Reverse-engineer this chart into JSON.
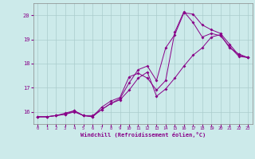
{
  "xlabel": "Windchill (Refroidissement éolien,°C)",
  "bg_color": "#cceaea",
  "grid_color": "#aacccc",
  "line_color": "#880088",
  "xlim": [
    -0.5,
    23.5
  ],
  "ylim": [
    15.5,
    20.5
  ],
  "xticks": [
    0,
    1,
    2,
    3,
    4,
    5,
    6,
    7,
    8,
    9,
    10,
    11,
    12,
    13,
    14,
    15,
    16,
    17,
    18,
    19,
    20,
    21,
    22,
    23
  ],
  "yticks": [
    16,
    17,
    18,
    19,
    20
  ],
  "line1_x": [
    0,
    1,
    2,
    3,
    4,
    5,
    6,
    7,
    8,
    9,
    10,
    11,
    12,
    13,
    14,
    15,
    16,
    17,
    18,
    19,
    20,
    21,
    22,
    23
  ],
  "line1_y": [
    15.8,
    15.8,
    15.85,
    15.9,
    16.0,
    15.85,
    15.8,
    16.1,
    16.35,
    16.5,
    16.9,
    17.4,
    17.65,
    16.65,
    16.95,
    17.4,
    17.9,
    18.35,
    18.65,
    19.1,
    19.2,
    18.65,
    18.4,
    18.25
  ],
  "line2_x": [
    0,
    1,
    2,
    3,
    4,
    5,
    6,
    7,
    8,
    9,
    10,
    11,
    12,
    13,
    14,
    15,
    16,
    17,
    18,
    19,
    20,
    21,
    22,
    23
  ],
  "line2_y": [
    15.8,
    15.8,
    15.85,
    15.9,
    16.05,
    15.85,
    15.85,
    16.1,
    16.35,
    16.55,
    17.2,
    17.75,
    17.9,
    17.3,
    18.65,
    19.2,
    20.1,
    20.05,
    19.6,
    19.4,
    19.25,
    18.8,
    18.35,
    18.25
  ],
  "line3_x": [
    0,
    1,
    2,
    3,
    4,
    5,
    6,
    7,
    8,
    9,
    10,
    11,
    12,
    13,
    14,
    15,
    16,
    17,
    18,
    19,
    20,
    21,
    22,
    23
  ],
  "line3_y": [
    15.8,
    15.8,
    15.85,
    15.95,
    16.05,
    15.85,
    15.8,
    16.2,
    16.45,
    16.6,
    17.45,
    17.6,
    17.4,
    16.9,
    17.3,
    19.3,
    20.15,
    19.7,
    19.1,
    19.25,
    19.15,
    18.7,
    18.3,
    18.25
  ]
}
